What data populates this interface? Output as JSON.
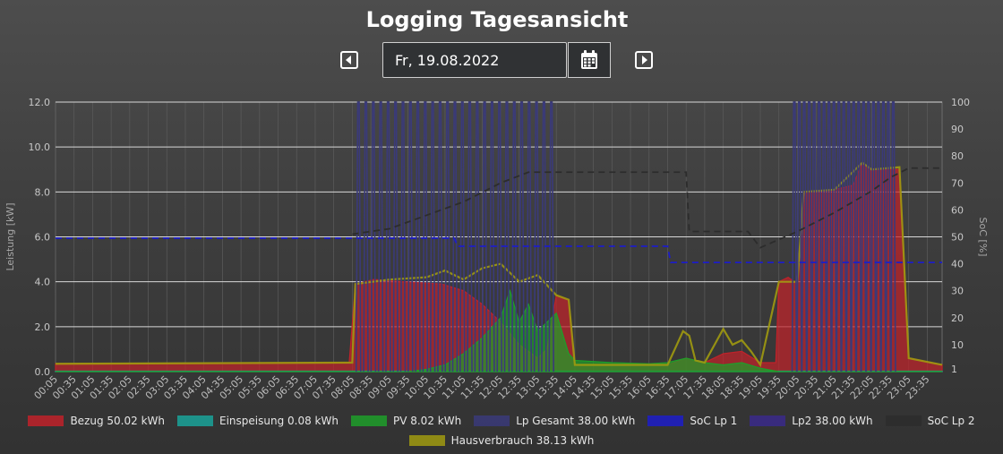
{
  "header": {
    "title": "Logging Tagesansicht"
  },
  "date_picker": {
    "value": "Fr, 19.08.2022"
  },
  "colors": {
    "bezug": "#c0222a",
    "einspeisung": "#1aa39a",
    "pv": "#1e9e2a",
    "lp_gesamt": "#3a3a7a",
    "soc_lp1": "#1d1dc8",
    "lp2": "#3a2a8a",
    "soc_lp2": "#2c2c2c",
    "hausverbrauch": "#a09a10"
  },
  "chart_data": {
    "type": "area",
    "title": "",
    "ylabel": "Leistung [kW]",
    "ylabel_right": "SoC [%]",
    "ylim": [
      0,
      12
    ],
    "ylim_right": [
      0,
      100
    ],
    "y_ticks": [
      "0.0",
      "2.0",
      "4.0",
      "6.0",
      "8.0",
      "10.0",
      "12.0"
    ],
    "y_right_ticks": [
      "1",
      "10",
      "20",
      "30",
      "40",
      "50",
      "60",
      "70",
      "80",
      "90",
      "100"
    ],
    "x_tick_labels": [
      "00:05",
      "00:35",
      "01:05",
      "01:35",
      "02:05",
      "02:35",
      "03:05",
      "03:35",
      "04:05",
      "04:35",
      "05:05",
      "05:35",
      "06:05",
      "06:35",
      "07:05",
      "07:35",
      "08:05",
      "08:35",
      "09:05",
      "09:35",
      "10:05",
      "10:35",
      "11:05",
      "11:35",
      "12:05",
      "12:35",
      "13:05",
      "13:35",
      "14:05",
      "14:35",
      "15:05",
      "15:35",
      "16:05",
      "16:35",
      "17:05",
      "17:35",
      "18:05",
      "18:35",
      "19:05",
      "19:35",
      "20:05",
      "20:35",
      "21:05",
      "21:35",
      "22:05",
      "22:35",
      "23:05",
      "23:35"
    ],
    "legend": [
      {
        "key": "bezug",
        "label": "Bezug 50.02 kWh"
      },
      {
        "key": "einspeisung",
        "label": "Einspeisung 0.08 kWh"
      },
      {
        "key": "pv",
        "label": "PV 8.02 kWh"
      },
      {
        "key": "lp_gesamt",
        "label": "Lp Gesamt 38.00 kWh"
      },
      {
        "key": "soc_lp1",
        "label": "SoC Lp 1"
      },
      {
        "key": "lp2",
        "label": "Lp2 38.00 kWh"
      },
      {
        "key": "soc_lp2",
        "label": "SoC Lp 2"
      },
      {
        "key": "hausverbrauch",
        "label": "Hausverbrauch 38.13 kWh"
      }
    ],
    "grid": true,
    "series": [
      {
        "key": "bezug",
        "name": "Bezug 50.02 kWh",
        "style": "area",
        "axis": "left",
        "points": [
          [
            "00:05",
            0.35
          ],
          [
            "08:00",
            0.4
          ],
          [
            "08:10",
            3.9
          ],
          [
            "08:40",
            4.1
          ],
          [
            "09:30",
            4.0
          ],
          [
            "10:30",
            3.9
          ],
          [
            "11:05",
            3.6
          ],
          [
            "11:35",
            3.0
          ],
          [
            "12:05",
            2.2
          ],
          [
            "12:35",
            1.2
          ],
          [
            "13:05",
            0.6
          ],
          [
            "13:20",
            1.0
          ],
          [
            "13:35",
            3.4
          ],
          [
            "13:55",
            3.2
          ],
          [
            "14:05",
            0.3
          ],
          [
            "16:35",
            0.3
          ],
          [
            "17:05",
            0.6
          ],
          [
            "17:35",
            0.4
          ],
          [
            "18:05",
            0.8
          ],
          [
            "18:35",
            0.9
          ],
          [
            "19:05",
            0.4
          ],
          [
            "19:30",
            0.4
          ],
          [
            "19:35",
            4.0
          ],
          [
            "19:50",
            4.2
          ],
          [
            "20:05",
            3.9
          ],
          [
            "20:15",
            8.0
          ],
          [
            "21:05",
            8.1
          ],
          [
            "21:35",
            8.3
          ],
          [
            "21:50",
            9.3
          ],
          [
            "22:05",
            9.0
          ],
          [
            "22:35",
            9.0
          ],
          [
            "22:50",
            9.0
          ],
          [
            "23:05",
            0.6
          ],
          [
            "23:59",
            0.3
          ]
        ]
      },
      {
        "key": "einspeisung",
        "name": "Einspeisung 0.08 kWh",
        "style": "area",
        "axis": "left",
        "points": [
          [
            "00:05",
            0.02
          ],
          [
            "23:59",
            0.02
          ]
        ]
      },
      {
        "key": "pv",
        "name": "PV 8.02 kWh",
        "style": "area",
        "axis": "left",
        "points": [
          [
            "00:05",
            0.0
          ],
          [
            "09:35",
            0.0
          ],
          [
            "10:05",
            0.1
          ],
          [
            "10:35",
            0.3
          ],
          [
            "11:05",
            0.8
          ],
          [
            "11:35",
            1.5
          ],
          [
            "12:05",
            2.4
          ],
          [
            "12:20",
            3.6
          ],
          [
            "12:35",
            2.2
          ],
          [
            "12:50",
            3.0
          ],
          [
            "13:05",
            1.8
          ],
          [
            "13:35",
            2.6
          ],
          [
            "13:55",
            0.8
          ],
          [
            "14:05",
            0.5
          ],
          [
            "15:05",
            0.4
          ],
          [
            "16:05",
            0.35
          ],
          [
            "16:35",
            0.4
          ],
          [
            "17:05",
            0.6
          ],
          [
            "17:35",
            0.4
          ],
          [
            "18:05",
            0.3
          ],
          [
            "18:35",
            0.4
          ],
          [
            "19:05",
            0.15
          ],
          [
            "19:35",
            0.0
          ],
          [
            "23:59",
            0.0
          ]
        ]
      },
      {
        "key": "hausverbrauch",
        "name": "Hausverbrauch 38.13 kWh",
        "style": "line",
        "axis": "left",
        "points": [
          [
            "00:05",
            0.35
          ],
          [
            "08:05",
            0.4
          ],
          [
            "08:10",
            3.9
          ],
          [
            "09:05",
            4.1
          ],
          [
            "10:05",
            4.2
          ],
          [
            "10:35",
            4.5
          ],
          [
            "11:05",
            4.1
          ],
          [
            "11:35",
            4.6
          ],
          [
            "12:05",
            4.8
          ],
          [
            "12:35",
            4.0
          ],
          [
            "13:05",
            4.3
          ],
          [
            "13:35",
            3.4
          ],
          [
            "13:55",
            3.2
          ],
          [
            "14:05",
            0.3
          ],
          [
            "16:35",
            0.3
          ],
          [
            "17:00",
            1.8
          ],
          [
            "17:10",
            1.6
          ],
          [
            "17:20",
            0.5
          ],
          [
            "17:35",
            0.4
          ],
          [
            "18:05",
            1.9
          ],
          [
            "18:20",
            1.2
          ],
          [
            "18:35",
            1.4
          ],
          [
            "18:50",
            0.9
          ],
          [
            "19:05",
            0.3
          ],
          [
            "19:35",
            4.0
          ],
          [
            "20:05",
            4.0
          ],
          [
            "20:15",
            8.0
          ],
          [
            "21:05",
            8.1
          ],
          [
            "21:50",
            9.3
          ],
          [
            "22:05",
            9.0
          ],
          [
            "22:50",
            9.1
          ],
          [
            "23:05",
            0.6
          ],
          [
            "23:59",
            0.3
          ]
        ]
      },
      {
        "key": "lp_gesamt",
        "name": "Lp Gesamt 38.00 kWh",
        "style": "pulses",
        "axis": "left",
        "peak": 12.0,
        "pulse_times": [
          "08:15",
          "08:27",
          "08:39",
          "08:51",
          "09:03",
          "09:15",
          "09:27",
          "09:39",
          "09:51",
          "10:03",
          "10:15",
          "10:27",
          "10:39",
          "10:51",
          "11:03",
          "11:15",
          "11:27",
          "11:39",
          "11:51",
          "12:03",
          "12:15",
          "12:27",
          "12:39",
          "12:51",
          "13:03",
          "13:15",
          "13:27",
          "20:00",
          "20:08",
          "20:16",
          "20:24",
          "20:32",
          "20:40",
          "20:48",
          "20:56",
          "21:04",
          "21:12",
          "21:20",
          "21:28",
          "21:36",
          "21:44",
          "21:52",
          "22:00",
          "22:08",
          "22:16",
          "22:24",
          "22:32",
          "22:40"
        ]
      },
      {
        "key": "soc_lp1",
        "name": "SoC Lp 1",
        "style": "dashed",
        "axis": "right",
        "points": [
          [
            "00:05",
            49.5
          ],
          [
            "10:50",
            49.5
          ],
          [
            "10:55",
            46.5
          ],
          [
            "16:35",
            46.5
          ],
          [
            "16:40",
            40.5
          ],
          [
            "23:59",
            40.5
          ]
        ]
      },
      {
        "key": "soc_lp2",
        "name": "SoC Lp 2",
        "style": "dashed",
        "axis": "right",
        "points": [
          [
            "08:05",
            51
          ],
          [
            "09:05",
            53
          ],
          [
            "10:05",
            58
          ],
          [
            "11:05",
            63
          ],
          [
            "12:05",
            70
          ],
          [
            "12:50",
            74
          ],
          [
            "17:05",
            74
          ],
          [
            "17:10",
            52
          ],
          [
            "18:45",
            52
          ],
          [
            "19:05",
            46
          ],
          [
            "20:05",
            52
          ],
          [
            "21:05",
            59
          ],
          [
            "22:05",
            67
          ],
          [
            "22:35",
            72
          ],
          [
            "23:05",
            75.5
          ],
          [
            "23:59",
            75.5
          ]
        ]
      }
    ]
  }
}
